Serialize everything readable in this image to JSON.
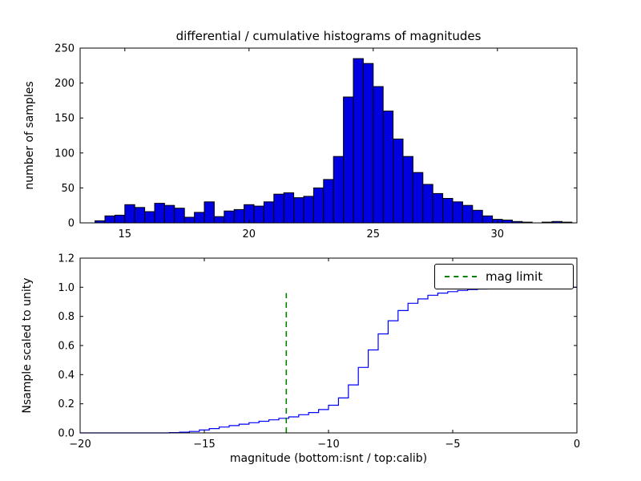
{
  "chart_data": [
    {
      "type": "bar",
      "title": "differential / cumulative histograms of magnitudes",
      "ylabel": "number of samples",
      "xlabel": "",
      "xlim": [
        13.2,
        33.2
      ],
      "ylim": [
        0,
        250
      ],
      "xticks": [
        15,
        20,
        25,
        30
      ],
      "xticklabels": [
        "15",
        "20",
        "25",
        "30"
      ],
      "yticks": [
        0,
        50,
        100,
        150,
        200,
        250
      ],
      "yticklabels": [
        "0",
        "50",
        "100",
        "150",
        "200",
        "250"
      ],
      "grid": false,
      "bar_color": "#0000e0",
      "bar_edge": "#000000",
      "bin_start": 13.8,
      "bin_width": 0.4,
      "values": [
        3,
        10,
        11,
        26,
        22,
        16,
        28,
        25,
        21,
        8,
        15,
        30,
        9,
        17,
        19,
        26,
        24,
        30,
        41,
        43,
        36,
        38,
        50,
        62,
        95,
        180,
        235,
        228,
        195,
        160,
        120,
        95,
        72,
        55,
        42,
        35,
        30,
        25,
        18,
        10,
        5,
        4,
        2,
        1,
        0,
        1,
        2,
        1
      ]
    },
    {
      "type": "line",
      "title": "",
      "ylabel": "Nsample scaled to unity",
      "xlabel": "magnitude (bottom:isnt / top:calib)",
      "xlim": [
        -20,
        0
      ],
      "ylim": [
        0,
        1.2
      ],
      "xticks": [
        -20,
        -15,
        -10,
        -5,
        0
      ],
      "xticklabels": [
        "−20",
        "−15",
        "−10",
        "−5",
        "0"
      ],
      "yticks": [
        0,
        0.2,
        0.4,
        0.6,
        0.8,
        1.0,
        1.2
      ],
      "yticklabels": [
        "0.0",
        "0.2",
        "0.4",
        "0.6",
        "0.8",
        "1.0",
        "1.2"
      ],
      "grid": false,
      "line_color": "#0000ff",
      "step_start": -20,
      "step_width": 0.4,
      "values": [
        0,
        0,
        0,
        0,
        0,
        0,
        0,
        0,
        0,
        0.002,
        0.005,
        0.01,
        0.02,
        0.03,
        0.04,
        0.05,
        0.06,
        0.07,
        0.08,
        0.09,
        0.1,
        0.11,
        0.125,
        0.14,
        0.16,
        0.19,
        0.24,
        0.33,
        0.45,
        0.57,
        0.68,
        0.77,
        0.84,
        0.89,
        0.92,
        0.945,
        0.96,
        0.97,
        0.978,
        0.984,
        0.988,
        0.991,
        0.994,
        0.996,
        0.997,
        0.998,
        0.999,
        1,
        1,
        1
      ],
      "mag_limit": {
        "x": -11.7,
        "y_top": 0.96,
        "color": "#008000",
        "label": "mag limit"
      },
      "legend": {
        "label": "mag limit",
        "position": "upper right"
      }
    }
  ]
}
